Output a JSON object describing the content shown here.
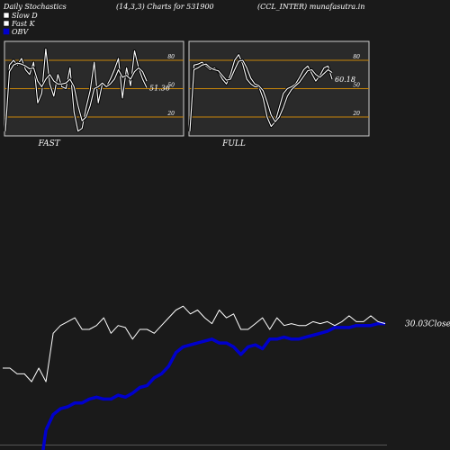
{
  "header": {
    "left": "Daily Stochastics",
    "center": "(14,3,3) Charts for 531900",
    "right": "(CCL_INTER) munafasutra.in"
  },
  "legend": [
    {
      "label": "Slow  D",
      "swatch": "#ffffff",
      "border": "#000000"
    },
    {
      "label": "Fast K",
      "swatch": "#ffffff",
      "border": "#000000"
    },
    {
      "label": "OBV",
      "swatch": "#0000cc",
      "border": "#0000cc"
    }
  ],
  "colors": {
    "background": "#1a1a1a",
    "panel": "#2a2a2a",
    "panel_border": "#cccccc",
    "level_line": "#c8860a",
    "stoch_line": "#ffffff",
    "stoch_outline": "#000000",
    "price_line": "#ffffff",
    "obv_line": "#0000cc"
  },
  "chart_data": [
    {
      "type": "line",
      "title": "FAST",
      "yticks": [
        20,
        50,
        80
      ],
      "ylim": [
        0,
        100
      ],
      "value_label": "51.36",
      "series": [
        {
          "name": "Fast K",
          "values": [
            5,
            75,
            80,
            75,
            82,
            70,
            65,
            78,
            35,
            45,
            92,
            55,
            42,
            65,
            52,
            50,
            72,
            25,
            5,
            8,
            30,
            48,
            78,
            35,
            55,
            52,
            60,
            70,
            82,
            40,
            72,
            53,
            90,
            72,
            60,
            51
          ]
        },
        {
          "name": "Slow  D",
          "values": [
            5,
            68,
            75,
            77,
            76,
            74,
            71,
            72,
            58,
            52,
            60,
            65,
            58,
            55,
            55,
            56,
            60,
            52,
            32,
            16,
            20,
            32,
            50,
            52,
            56,
            52,
            55,
            60,
            70,
            62,
            64,
            60,
            68,
            72,
            68,
            58
          ]
        }
      ]
    },
    {
      "type": "line",
      "title": "FULL",
      "yticks": [
        20,
        50,
        80
      ],
      "ylim": [
        0,
        100
      ],
      "value_label": "60.18",
      "series": [
        {
          "name": "Fast K",
          "values": [
            5,
            75,
            76,
            78,
            74,
            70,
            72,
            68,
            60,
            55,
            65,
            80,
            86,
            76,
            60,
            55,
            52,
            52,
            40,
            20,
            10,
            15,
            30,
            45,
            50,
            52,
            55,
            62,
            70,
            74,
            66,
            58,
            64,
            72,
            74,
            60
          ]
        },
        {
          "name": "Slow  D",
          "values": [
            5,
            70,
            72,
            75,
            76,
            72,
            70,
            69,
            64,
            59,
            60,
            70,
            79,
            80,
            72,
            61,
            55,
            53,
            48,
            36,
            22,
            15,
            20,
            30,
            42,
            49,
            53,
            57,
            63,
            69,
            70,
            65,
            62,
            66,
            70,
            67
          ]
        }
      ]
    },
    {
      "type": "line",
      "value_label": "30.03",
      "series_label": "Close",
      "series": [
        {
          "name": "Close",
          "values": [
            40,
            40,
            37,
            37,
            33,
            40,
            33,
            58,
            62,
            64,
            66,
            60,
            60,
            62,
            66,
            58,
            62,
            61,
            55,
            60,
            60,
            58,
            62,
            66,
            70,
            72,
            68,
            70,
            66,
            63,
            70,
            66,
            68,
            60,
            60,
            63,
            66,
            60,
            66,
            62,
            63,
            62,
            62,
            64,
            63,
            64,
            62,
            64,
            67,
            64,
            64,
            67,
            64,
            63
          ]
        },
        {
          "name": "OBV",
          "values": [
            null,
            null,
            null,
            null,
            null,
            null,
            8,
            16,
            19,
            20,
            22,
            22,
            24,
            25,
            24,
            24,
            26,
            25,
            27,
            30,
            31,
            35,
            37,
            41,
            48,
            51,
            52,
            53,
            54,
            55,
            53,
            53,
            51,
            47,
            51,
            52,
            50,
            55,
            55,
            56,
            55,
            55,
            56,
            57,
            58,
            59,
            61,
            61,
            61,
            62,
            62,
            62,
            63,
            63
          ]
        }
      ]
    }
  ]
}
